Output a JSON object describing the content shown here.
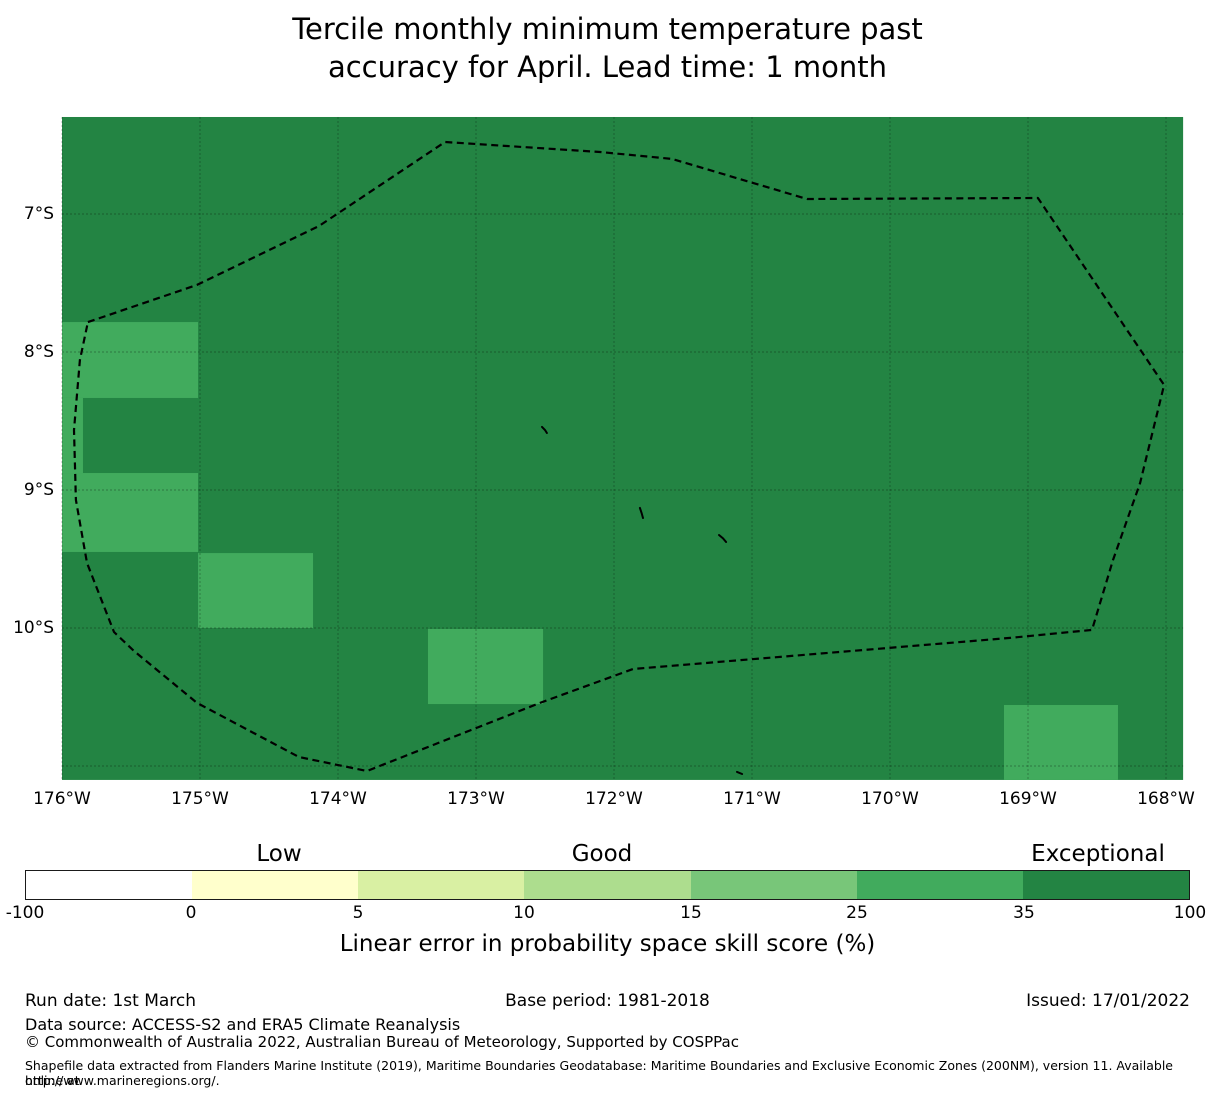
{
  "header": {
    "title_lines": [
      "Tercile monthly minimum temperature past",
      "accuracy for April. Lead time: 1 month"
    ]
  },
  "map": {
    "lon_ticks": [
      "176°W",
      "175°W",
      "174°W",
      "173°W",
      "172°W",
      "171°W",
      "170°W",
      "169°W",
      "168°W"
    ],
    "lat_ticks": [
      "7°S",
      "8°S",
      "9°S",
      "10°S"
    ]
  },
  "chart_data": {
    "type": "heatmap",
    "title": "Tercile monthly minimum temperature past accuracy for April. Lead time: 1 month",
    "legend_title": "Linear error in probability space skill score (%)",
    "value_bins": [
      -100,
      0,
      5,
      10,
      15,
      25,
      35,
      100
    ],
    "extent": {
      "lon": [
        176.0,
        167.876
      ],
      "lat": [
        6.297,
        11.101
      ]
    },
    "colors": {
      "background_value_35_100": "#238443",
      "highlight_value_25_35": "#41ab5d",
      "boundary": "#000000"
    },
    "cells": [
      {
        "value_range": "25-35",
        "lon": [
          176.0,
          175.014
        ],
        "lat": [
          7.783,
          8.333
        ]
      },
      {
        "value_range": "25-35",
        "lon": [
          176.0,
          175.848
        ],
        "lat": [
          8.333,
          8.877
        ]
      },
      {
        "value_range": "25-35",
        "lon": [
          176.0,
          175.014
        ],
        "lat": [
          8.877,
          9.449
        ]
      },
      {
        "value_range": "25-35",
        "lon": [
          175.014,
          174.181
        ],
        "lat": [
          9.457,
          10.0
        ]
      },
      {
        "value_range": "25-35",
        "lon": [
          173.348,
          172.514
        ],
        "lat": [
          10.007,
          10.551
        ]
      },
      {
        "value_range": "25-35",
        "lon": [
          169.174,
          168.348
        ],
        "lat": [
          10.558,
          11.101
        ]
      }
    ],
    "gridlines": {
      "lons": [
        176,
        175,
        174,
        173,
        172,
        171,
        170,
        169,
        168
      ],
      "lats": [
        7,
        8,
        9,
        10,
        11
      ]
    },
    "eez_boundary": [
      [
        175.812,
        7.783
      ],
      [
        175.022,
        7.514
      ],
      [
        174.138,
        7.087
      ],
      [
        173.225,
        6.478
      ],
      [
        172.101,
        6.551
      ],
      [
        171.58,
        6.601
      ],
      [
        170.601,
        6.891
      ],
      [
        168.928,
        6.884
      ],
      [
        168.014,
        8.239
      ],
      [
        168.188,
        8.949
      ],
      [
        168.384,
        9.507
      ],
      [
        168.536,
        10.014
      ],
      [
        169.13,
        10.072
      ],
      [
        171.862,
        10.297
      ],
      [
        172.536,
        10.543
      ],
      [
        173.79,
        11.036
      ],
      [
        174.283,
        10.935
      ],
      [
        175.022,
        10.543
      ],
      [
        175.478,
        10.167
      ],
      [
        175.623,
        10.029
      ],
      [
        175.819,
        9.529
      ],
      [
        175.899,
        9.072
      ],
      [
        175.913,
        8.565
      ],
      [
        175.87,
        8.058
      ]
    ],
    "islands": [
      [
        [
          172.522,
          8.543
        ],
        [
          172.5,
          8.565
        ],
        [
          172.486,
          8.587
        ]
      ],
      [
        [
          171.812,
          9.13
        ],
        [
          171.8,
          9.167
        ],
        [
          171.79,
          9.203
        ]
      ],
      [
        [
          171.239,
          9.326
        ],
        [
          171.21,
          9.35
        ],
        [
          171.188,
          9.377
        ]
      ],
      [
        [
          171.109,
          11.043
        ],
        [
          171.072,
          11.058
        ]
      ]
    ]
  },
  "colorbar": {
    "tier_labels": [
      "Low",
      "Good",
      "Exceptional"
    ],
    "ticks": [
      "-100",
      "0",
      "5",
      "10",
      "15",
      "25",
      "35",
      "100"
    ],
    "segment_colors": [
      "#ffffff",
      "#ffffcc",
      "#d9f0a3",
      "#addd8e",
      "#78c679",
      "#41ab5d",
      "#238443"
    ],
    "caption": "Linear error in probability space skill score (%)"
  },
  "footer": {
    "run_date": "Run date: 1st March",
    "base_period": "Base period: 1981-2018",
    "issued": "Issued: 17/01/2022",
    "data_source": "Data source: ACCESS-S2 and ERA5 Climate Reanalysis",
    "copyright": "© Commonwealth of Australia 2022, Australian Bureau of Meteorology, Supported by COSPPac",
    "shapefile_note_lines": [
      "Shapefile data extracted from Flanders Marine Institute (2019), Maritime Boundaries Geodatabase: Maritime Boundaries and Exclusive Economic Zones (200NM), version 11. Available online at",
      "http://www.marineregions.org/."
    ]
  }
}
